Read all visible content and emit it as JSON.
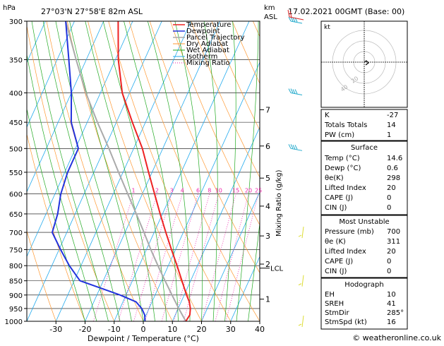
{
  "header": {
    "location": "27°03'N  27°58'E  82m  ASL",
    "datetime": "17.02.2021  00GMT  (Base: 00)",
    "left_unit": "hPa",
    "km_label": "km",
    "asl_label": "ASL"
  },
  "legend": [
    "Temperature",
    "Dewpoint",
    "Parcel Trajectory",
    "Dry Adiabat",
    "Wet Adiabat",
    "Isotherm",
    "Mixing Ratio"
  ],
  "axes": {
    "xlabel": "Dewpoint / Temperature (°C)",
    "mixing_ratio_label": "Mixing Ratio (g/kg)",
    "lcl_label": "LCL"
  },
  "footer": "© weatheronline.co.uk",
  "hodograph": {
    "label": "kt",
    "ring_labels": [
      "20",
      "40"
    ]
  },
  "stats_top": [
    {
      "label": "K",
      "value": "-27"
    },
    {
      "label": "Totals Totals",
      "value": "14"
    },
    {
      "label": "PW (cm)",
      "value": "1"
    }
  ],
  "surface": {
    "title": "Surface",
    "rows": [
      {
        "label": "Temp (°C)",
        "value": "14.6"
      },
      {
        "label": "Dewp (°C)",
        "value": "0.6"
      },
      {
        "label": "θe(K)",
        "value": "298"
      },
      {
        "label": "Lifted Index",
        "value": "20"
      },
      {
        "label": "CAPE (J)",
        "value": "0"
      },
      {
        "label": "CIN (J)",
        "value": "0"
      }
    ]
  },
  "most_unstable": {
    "title": "Most Unstable",
    "rows": [
      {
        "label": "Pressure (mb)",
        "value": "700"
      },
      {
        "label": "θe (K)",
        "value": "311"
      },
      {
        "label": "Lifted Index",
        "value": "20"
      },
      {
        "label": "CAPE (J)",
        "value": "0"
      },
      {
        "label": "CIN (J)",
        "value": "0"
      }
    ]
  },
  "hodograph_stats": {
    "title": "Hodograph",
    "rows": [
      {
        "label": "EH",
        "value": "10"
      },
      {
        "label": "SREH",
        "value": "41"
      },
      {
        "label": "StmDir",
        "value": "285°"
      },
      {
        "label": "StmSpd (kt)",
        "value": "16"
      }
    ]
  },
  "colors": {
    "temperature": "#ee2222",
    "dewpoint": "#2233dd",
    "parcel": "#aaaaaa",
    "dry_adiabat": "#ff9933",
    "wet_adiabat": "#22aa22",
    "isotherm": "#22aaee",
    "mixing_ratio": "#ee22aa",
    "wind_barb": "#22aacc"
  },
  "chart_data": {
    "type": "line",
    "title": "Skew-T log-P sounding",
    "xlabel": "Dewpoint / Temperature (°C)",
    "ylabel": "hPa",
    "x_ticks": [
      -30,
      -20,
      -10,
      0,
      10,
      20,
      30,
      40
    ],
    "pressure_levels": [
      300,
      350,
      400,
      450,
      500,
      550,
      600,
      650,
      700,
      750,
      800,
      850,
      900,
      950,
      1000
    ],
    "km_ticks": [
      {
        "km": "1",
        "p": 915
      },
      {
        "km": "2",
        "p": 795
      },
      {
        "km": "3",
        "p": 710
      },
      {
        "km": "4",
        "p": 630
      },
      {
        "km": "5",
        "p": 563
      },
      {
        "km": "6",
        "p": 495
      },
      {
        "km": "7",
        "p": 428
      }
    ],
    "mixing_ratio_values": [
      "1",
      "2",
      "3",
      "4",
      "6",
      "8",
      "10",
      "15",
      "20",
      "25"
    ],
    "lcl_p": 808,
    "ylim": [
      1000,
      300
    ],
    "xlim": [
      -40,
      40
    ],
    "series": [
      {
        "name": "Temperature",
        "p": [
          1000,
          975,
          950,
          925,
          900,
          850,
          800,
          750,
          700,
          650,
          600,
          550,
          500,
          450,
          400,
          350,
          300
        ],
        "t": [
          14.6,
          15.0,
          14.2,
          12.8,
          10.8,
          7.0,
          3.0,
          -1.4,
          -6.0,
          -10.8,
          -15.8,
          -21.2,
          -27.0,
          -34.5,
          -42.5,
          -49.0,
          -55.0
        ]
      },
      {
        "name": "Dewpoint",
        "p": [
          1000,
          975,
          950,
          925,
          900,
          850,
          800,
          750,
          700,
          650,
          600,
          550,
          500,
          450,
          400,
          350,
          300
        ],
        "t": [
          0.6,
          -0.5,
          -2.5,
          -5.5,
          -12.0,
          -28.0,
          -34.0,
          -39.5,
          -45.0,
          -46.0,
          -48.0,
          -49.0,
          -49.0,
          -55.5,
          -60.0,
          -66.0,
          -73.0
        ]
      },
      {
        "name": "Parcel Trajectory",
        "p": [
          1000,
          950,
          900,
          850,
          808,
          750,
          700,
          650,
          600,
          550,
          500,
          450,
          400,
          350,
          300
        ],
        "t": [
          14.6,
          10.2,
          5.8,
          1.2,
          -2.8,
          -8.5,
          -13.5,
          -19.0,
          -25.0,
          -31.5,
          -38.5,
          -46.5,
          -55.0,
          -63.5,
          -73.0
        ]
      }
    ],
    "wind_profile": [
      {
        "p": 300,
        "label": "strong"
      },
      {
        "p": 400,
        "label": "strong"
      },
      {
        "p": 500,
        "label": "strong"
      },
      {
        "p": 700,
        "label": "light"
      },
      {
        "p": 850,
        "label": "light"
      },
      {
        "p": 1000,
        "label": "light"
      }
    ]
  }
}
